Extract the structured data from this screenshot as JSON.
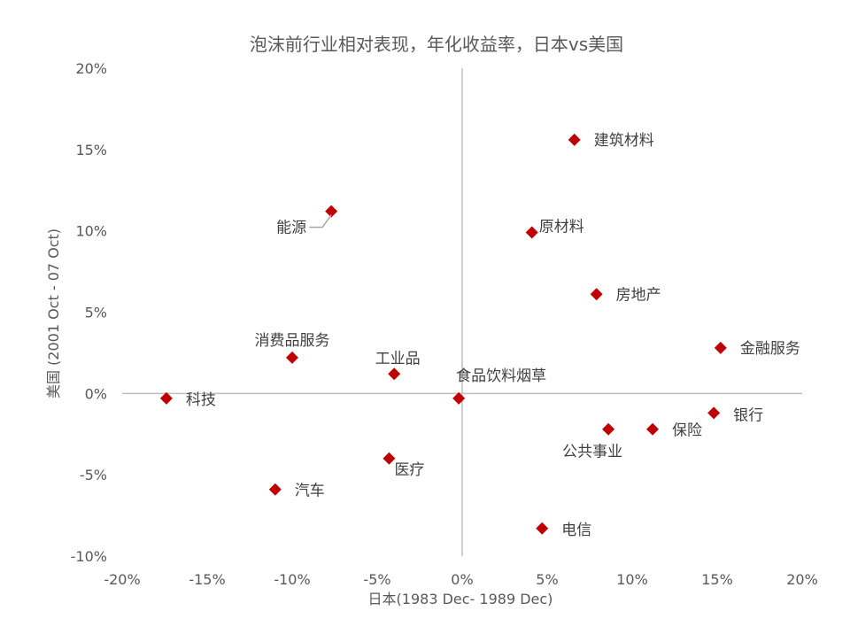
{
  "chart_data": {
    "type": "scatter",
    "title": "泡沫前行业相对表现，年化收益率，日本vs美国",
    "xlabel": "日本(1983 Dec- 1989 Dec)",
    "ylabel": "美国 (2001 Oct - 07 Oct)",
    "xlim": [
      -0.2,
      0.2
    ],
    "ylim": [
      -0.1,
      0.2
    ],
    "x_ticks": [
      {
        "value": -0.2,
        "label": "-20%"
      },
      {
        "value": -0.15,
        "label": "-15%"
      },
      {
        "value": -0.1,
        "label": "-10%"
      },
      {
        "value": -0.05,
        "label": "-5%"
      },
      {
        "value": 0.0,
        "label": "0%"
      },
      {
        "value": 0.05,
        "label": "5%"
      },
      {
        "value": 0.1,
        "label": "10%"
      },
      {
        "value": 0.15,
        "label": "15%"
      },
      {
        "value": 0.2,
        "label": "20%"
      }
    ],
    "y_ticks": [
      {
        "value": 0.2,
        "label": "20%"
      },
      {
        "value": 0.15,
        "label": "15%"
      },
      {
        "value": 0.1,
        "label": "10%"
      },
      {
        "value": 0.05,
        "label": "5%"
      },
      {
        "value": 0.0,
        "label": "0%"
      },
      {
        "value": -0.05,
        "label": "-5%"
      },
      {
        "value": -0.1,
        "label": "-10%"
      }
    ],
    "grid": false,
    "marker": "diamond",
    "marker_color": "#C00000",
    "points": [
      {
        "label": "建筑材料",
        "x": 0.066,
        "y": 0.156
      },
      {
        "label": "能源",
        "x": -0.077,
        "y": 0.112
      },
      {
        "label": "原材料",
        "x": 0.041,
        "y": 0.099
      },
      {
        "label": "房地产",
        "x": 0.079,
        "y": 0.061
      },
      {
        "label": "金融服务",
        "x": 0.152,
        "y": 0.028
      },
      {
        "label": "消费品服务",
        "x": -0.1,
        "y": 0.022
      },
      {
        "label": "工业品",
        "x": -0.04,
        "y": 0.012
      },
      {
        "label": "食品饮料烟草",
        "x": -0.002,
        "y": -0.003
      },
      {
        "label": "科技",
        "x": -0.174,
        "y": -0.003
      },
      {
        "label": "银行",
        "x": 0.148,
        "y": -0.012
      },
      {
        "label": "保险",
        "x": 0.112,
        "y": -0.022
      },
      {
        "label": "公共事业",
        "x": 0.086,
        "y": -0.022
      },
      {
        "label": "医疗",
        "x": -0.043,
        "y": -0.04
      },
      {
        "label": "汽车",
        "x": -0.11,
        "y": -0.059
      },
      {
        "label": "电信",
        "x": 0.047,
        "y": -0.083
      }
    ]
  }
}
